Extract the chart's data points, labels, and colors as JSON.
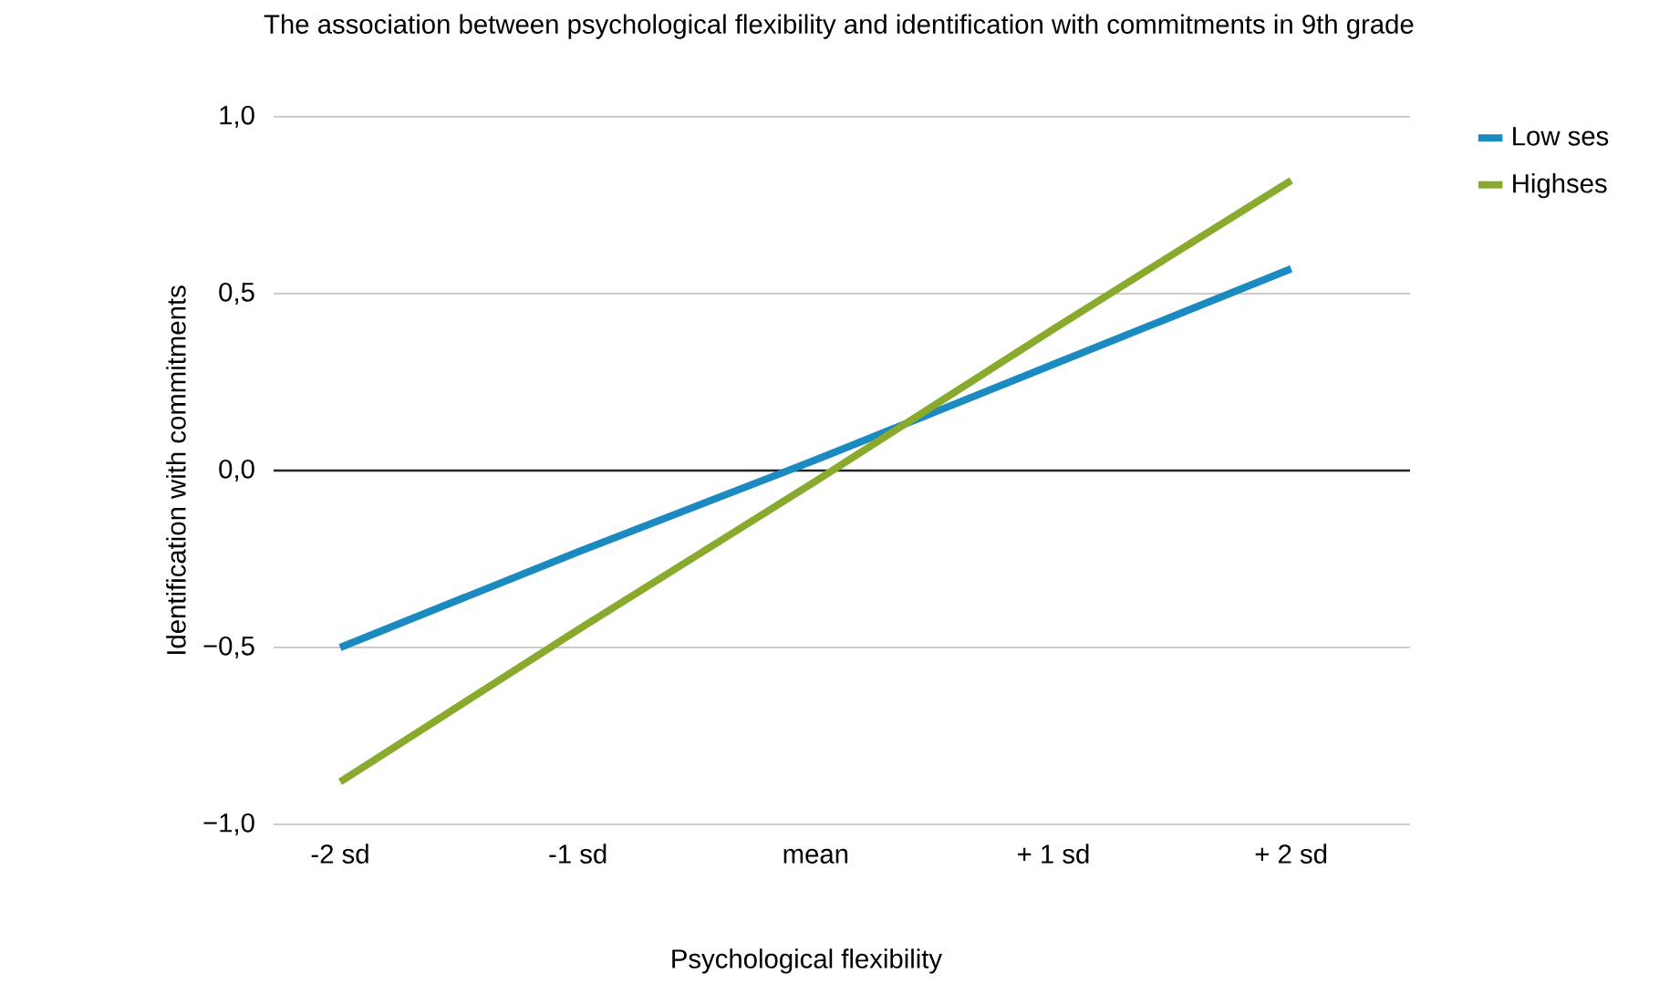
{
  "chart_data": {
    "type": "line",
    "title": "The association between psychological flexibility and identification with commitments in 9th grade",
    "xlabel": "Psychological flexibility",
    "ylabel": "Identification with commitments",
    "categories": [
      "-2 sd",
      "-1 sd",
      "mean",
      "+ 1 sd",
      "+ 2 sd"
    ],
    "series": [
      {
        "name": "Low ses",
        "color": "#1a8ac0",
        "values": [
          -0.5,
          -0.23,
          0.03,
          0.3,
          0.57
        ]
      },
      {
        "name": "Highses",
        "color": "#8aaa2e",
        "values": [
          -0.88,
          -0.45,
          -0.03,
          0.4,
          0.82
        ]
      }
    ],
    "ylim": [
      -1.0,
      1.0
    ],
    "yticks": [
      {
        "value": -1.0,
        "label": "−1,0"
      },
      {
        "value": -0.5,
        "label": "−0,5"
      },
      {
        "value": 0.0,
        "label": "0,0"
      },
      {
        "value": 0.5,
        "label": "0,5"
      },
      {
        "value": 1.0,
        "label": "1,0"
      }
    ],
    "ref_lines": [
      {
        "axis": "y",
        "value": 0,
        "color": "#222222"
      }
    ],
    "grid": "y",
    "legend": "top right",
    "marker": "none",
    "line_style": "solid"
  }
}
